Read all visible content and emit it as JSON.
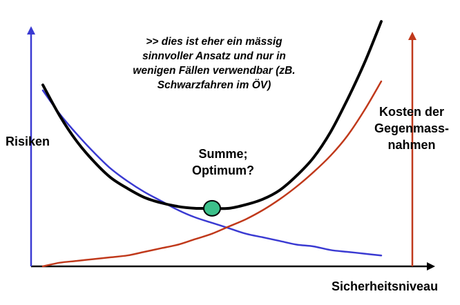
{
  "chart_data": {
    "type": "line",
    "note": ">> dies ist eher ein mässig\nsinnvoller Ansatz und nur in\nwenigen Fällen verwendbar (zB.\nSchwarzfahren im ÖV)",
    "xlabel": "Sicherheitsniveau",
    "series_labels": {
      "risks": "Risiken",
      "costs": "Kosten der\nGegenmass-\nnahmen",
      "sum": "Summe;\nOptimum?"
    },
    "x": [
      0,
      0.05,
      0.1,
      0.15,
      0.2,
      0.25,
      0.3,
      0.35,
      0.4,
      0.45,
      0.5,
      0.55,
      0.6,
      0.65,
      0.7,
      0.75,
      0.8,
      0.85,
      0.9,
      0.95,
      1.0
    ],
    "series": [
      {
        "key": "risks",
        "color": "#3a3ad2",
        "values": [
          0.97,
          0.84,
          0.73,
          0.63,
          0.54,
          0.47,
          0.41,
          0.36,
          0.31,
          0.27,
          0.24,
          0.21,
          0.18,
          0.16,
          0.14,
          0.12,
          0.11,
          0.09,
          0.08,
          0.07,
          0.06
        ]
      },
      {
        "key": "costs",
        "color": "#c0391b",
        "values": [
          0.0,
          0.02,
          0.03,
          0.04,
          0.05,
          0.06,
          0.08,
          0.1,
          0.12,
          0.15,
          0.18,
          0.22,
          0.26,
          0.31,
          0.37,
          0.44,
          0.52,
          0.61,
          0.72,
          0.86,
          1.02
        ]
      },
      {
        "key": "sum",
        "color": "#000000",
        "values": [
          1.0,
          0.83,
          0.69,
          0.58,
          0.49,
          0.43,
          0.38,
          0.35,
          0.33,
          0.32,
          0.32,
          0.32,
          0.34,
          0.37,
          0.42,
          0.5,
          0.6,
          0.74,
          0.92,
          1.12,
          1.35
        ]
      }
    ],
    "optimum": {
      "x": 0.5,
      "y": 0.32,
      "color": "#3cc08a"
    },
    "axis_colors": {
      "x": "#000000",
      "left": "#3a3ad2",
      "right": "#c0391b"
    },
    "xlim": [
      0,
      1
    ],
    "ylim": [
      0,
      1.4
    ],
    "grid": false
  }
}
